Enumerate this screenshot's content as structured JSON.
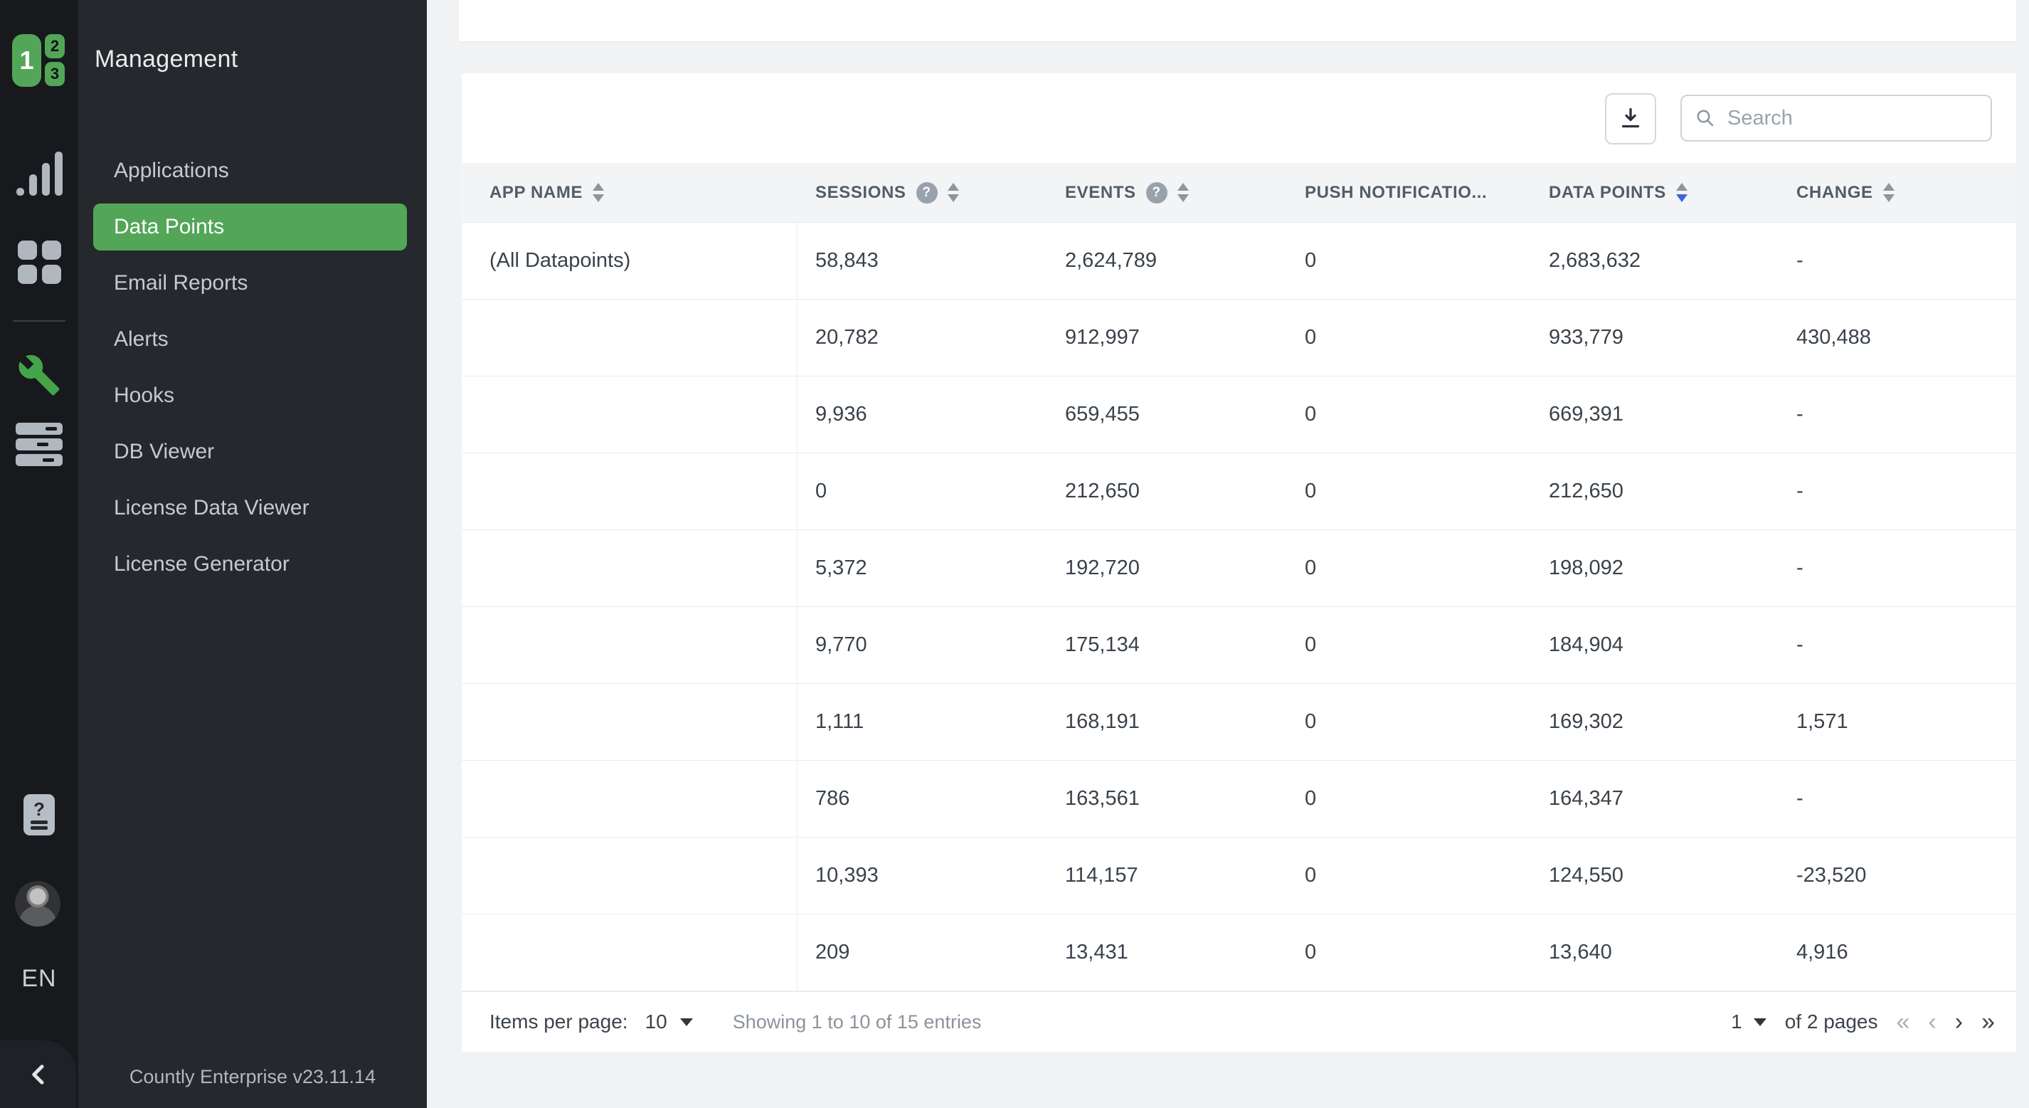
{
  "colors": {
    "accent": "#53a657",
    "sort_active": "#3e64de",
    "rail_bg": "#17191d",
    "sidebar_bg": "#25282c"
  },
  "brand": {
    "version_label": "Countly Enterprise v23.11.14",
    "language": "EN"
  },
  "sidebar": {
    "title": "Management",
    "active_index": 1,
    "items": [
      {
        "label": "Applications"
      },
      {
        "label": "Data Points"
      },
      {
        "label": "Email Reports"
      },
      {
        "label": "Alerts"
      },
      {
        "label": "Hooks"
      },
      {
        "label": "DB Viewer"
      },
      {
        "label": "License Data Viewer"
      },
      {
        "label": "License Generator"
      }
    ]
  },
  "toolbar": {
    "search_placeholder": "Search"
  },
  "table": {
    "columns": [
      {
        "label": "APP NAME",
        "help": false,
        "sort": "neutral"
      },
      {
        "label": "SESSIONS",
        "help": true,
        "sort": "neutral"
      },
      {
        "label": "EVENTS",
        "help": true,
        "sort": "neutral"
      },
      {
        "label": "PUSH NOTIFICATIO...",
        "help": false,
        "sort": "none"
      },
      {
        "label": "DATA POINTS",
        "help": false,
        "sort": "desc"
      },
      {
        "label": "CHANGE",
        "help": false,
        "sort": "neutral"
      }
    ],
    "rows": [
      [
        "(All Datapoints)",
        "58,843",
        "2,624,789",
        "0",
        "2,683,632",
        "-"
      ],
      [
        "",
        "20,782",
        "912,997",
        "0",
        "933,779",
        "430,488"
      ],
      [
        "",
        "9,936",
        "659,455",
        "0",
        "669,391",
        "-"
      ],
      [
        "",
        "0",
        "212,650",
        "0",
        "212,650",
        "-"
      ],
      [
        "",
        "5,372",
        "192,720",
        "0",
        "198,092",
        "-"
      ],
      [
        "",
        "9,770",
        "175,134",
        "0",
        "184,904",
        "-"
      ],
      [
        "",
        "1,111",
        "168,191",
        "0",
        "169,302",
        "1,571"
      ],
      [
        "",
        "786",
        "163,561",
        "0",
        "164,347",
        "-"
      ],
      [
        "",
        "10,393",
        "114,157",
        "0",
        "124,550",
        "-23,520"
      ],
      [
        "",
        "209",
        "13,431",
        "0",
        "13,640",
        "4,916"
      ]
    ]
  },
  "footer": {
    "items_per_page_label": "Items per page:",
    "items_per_page_value": "10",
    "showing_text": "Showing 1 to 10 of 15 entries",
    "page_value": "1",
    "pages_text": "of 2 pages"
  },
  "icons": {
    "first_page": "«",
    "prev_page": "‹",
    "next_page": "›",
    "last_page": "»"
  }
}
